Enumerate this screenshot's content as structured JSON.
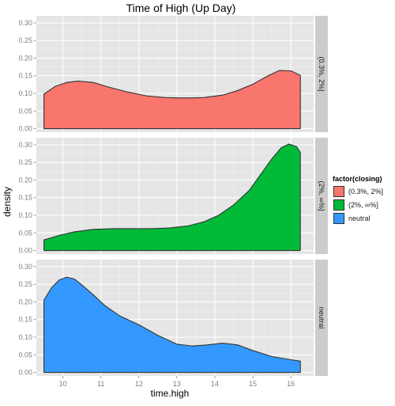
{
  "chart_data": {
    "type": "area",
    "title": "Time of High (Up Day)",
    "xlabel": "time.high",
    "ylabel": "density",
    "xlim": [
      9.3,
      16.6
    ],
    "ylim": [
      -0.01,
      0.32
    ],
    "x_ticks": [
      10,
      11,
      12,
      13,
      14,
      15,
      16
    ],
    "y_ticks": [
      0.0,
      0.05,
      0.1,
      0.15,
      0.2,
      0.25,
      0.3
    ],
    "y_tick_labels": [
      "0.00",
      "0.05",
      "0.10",
      "0.15",
      "0.20",
      "0.25",
      "0.30"
    ],
    "grid": true,
    "legend": {
      "title": "factor(closing)",
      "placement": "right",
      "entries": [
        "(0.3%, 2%]",
        "(2%, ∞%]",
        "neutral"
      ]
    },
    "series": [
      {
        "name": "(0.3%, 2%]",
        "facet_label": "(0.3%, 2%]",
        "color": "#f8766d",
        "x": [
          9.5,
          9.8,
          10.1,
          10.4,
          10.8,
          11.2,
          11.7,
          12.2,
          12.7,
          13.2,
          13.7,
          14.2,
          14.6,
          15.0,
          15.4,
          15.7,
          16.0,
          16.25
        ],
        "y": [
          0.098,
          0.12,
          0.131,
          0.135,
          0.131,
          0.118,
          0.104,
          0.093,
          0.088,
          0.087,
          0.088,
          0.095,
          0.108,
          0.126,
          0.15,
          0.165,
          0.164,
          0.151
        ]
      },
      {
        "name": "(2%, ∞%]",
        "facet_label": "(2%, ∞%]",
        "color": "#00ba38",
        "x": [
          9.5,
          9.9,
          10.3,
          10.8,
          11.3,
          11.8,
          12.3,
          12.8,
          13.3,
          13.7,
          14.1,
          14.5,
          14.9,
          15.2,
          15.5,
          15.75,
          15.95,
          16.15,
          16.25
        ],
        "y": [
          0.03,
          0.043,
          0.053,
          0.06,
          0.062,
          0.062,
          0.062,
          0.064,
          0.07,
          0.081,
          0.1,
          0.13,
          0.17,
          0.215,
          0.26,
          0.292,
          0.302,
          0.295,
          0.278
        ]
      },
      {
        "name": "neutral",
        "facet_label": "neutral",
        "color": "#3399ff",
        "x": [
          9.5,
          9.7,
          9.9,
          10.1,
          10.3,
          10.5,
          10.8,
          11.1,
          11.5,
          12.0,
          12.5,
          13.0,
          13.4,
          13.8,
          14.2,
          14.6,
          15.0,
          15.5,
          16.0,
          16.25
        ],
        "y": [
          0.205,
          0.24,
          0.262,
          0.27,
          0.265,
          0.248,
          0.22,
          0.19,
          0.16,
          0.135,
          0.105,
          0.08,
          0.075,
          0.078,
          0.083,
          0.078,
          0.062,
          0.045,
          0.036,
          0.032
        ]
      }
    ]
  }
}
